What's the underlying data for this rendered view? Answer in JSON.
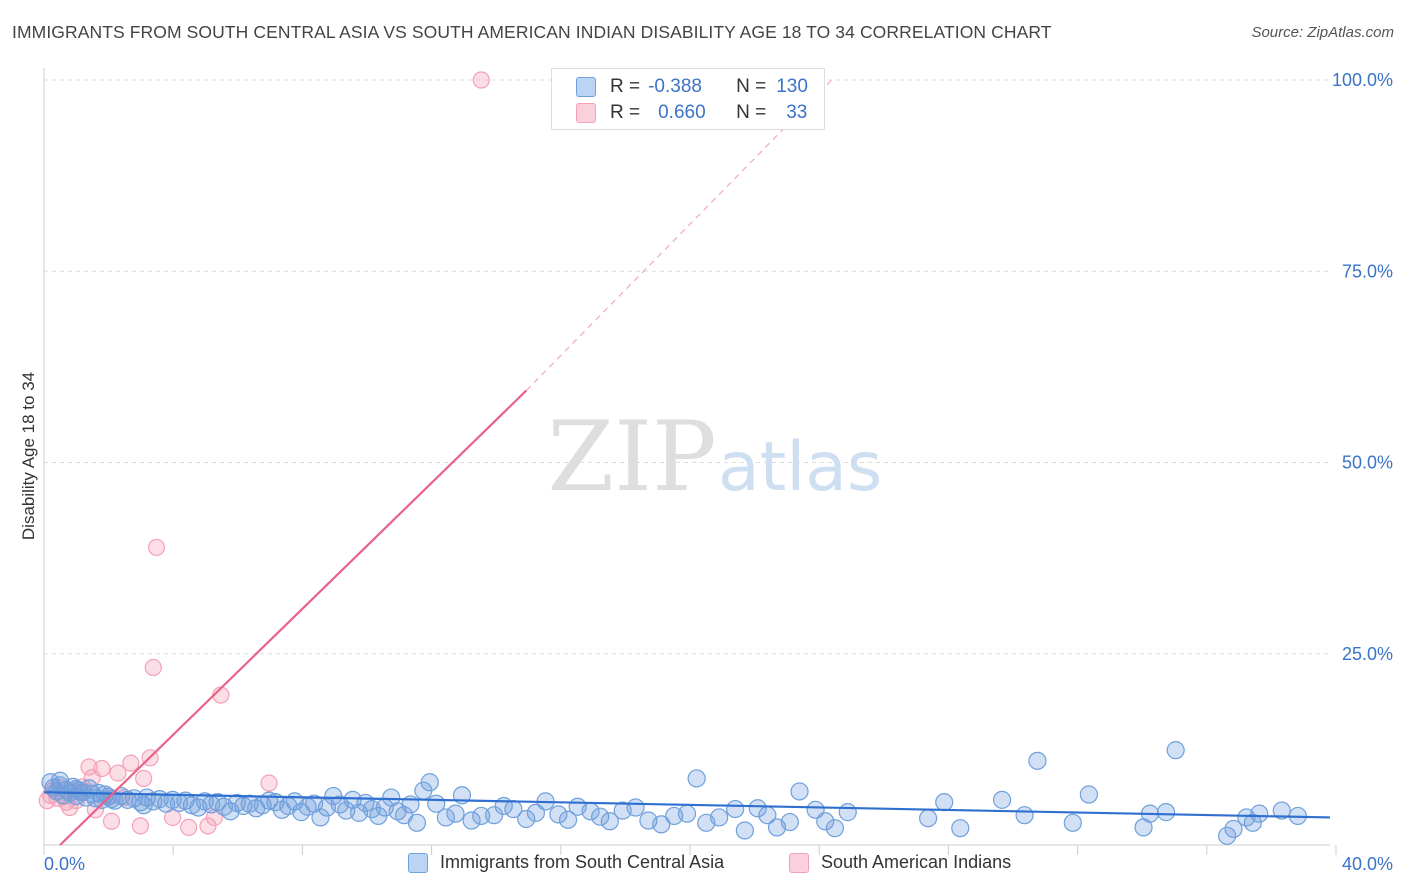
{
  "title": "IMMIGRANTS FROM SOUTH CENTRAL ASIA VS SOUTH AMERICAN INDIAN DISABILITY AGE 18 TO 34 CORRELATION CHART",
  "source": "Source: ZipAtlas.com",
  "watermark": {
    "zip": "ZIP",
    "atlas": "atlas"
  },
  "legend": {
    "series1": {
      "r_label": "R =",
      "r_value": "-0.388",
      "n_label": "N =",
      "n_value": "130"
    },
    "series2": {
      "r_label": "R =",
      "r_value": "0.660",
      "n_label": "N =",
      "n_value": "33"
    }
  },
  "chart_data": {
    "type": "scatter",
    "title": "IMMIGRANTS FROM SOUTH CENTRAL ASIA VS SOUTH AMERICAN INDIAN DISABILITY AGE 18 TO 34 CORRELATION CHART",
    "xlabel": "",
    "ylabel": "Disability Age 18 to 34",
    "xlim": [
      0,
      40
    ],
    "ylim": [
      0,
      100
    ],
    "x_tick_labels": [
      "0.0%",
      "40.0%"
    ],
    "y_tick_labels": [
      "25.0%",
      "50.0%",
      "75.0%",
      "100.0%"
    ],
    "y_ticks": [
      25,
      50,
      75,
      100
    ],
    "grid": true,
    "colors": {
      "blue": "#6fa0dc",
      "blue_line": "#2f6fd0",
      "pink": "#f4a0b8",
      "pink_line": "#e8628a",
      "tick": "#3a73c8"
    },
    "series": [
      {
        "name": "Immigrants from South Central Asia",
        "color": "#6fa0dc",
        "trend": {
          "x0": 0,
          "y0": 6.9,
          "x1": 40,
          "y1": 3.6
        },
        "points": [
          [
            0.2,
            8.2
          ],
          [
            0.3,
            7.5
          ],
          [
            0.4,
            7.0
          ],
          [
            0.5,
            7.8
          ],
          [
            0.6,
            6.5
          ],
          [
            0.7,
            7.2
          ],
          [
            0.8,
            6.8
          ],
          [
            0.9,
            7.6
          ],
          [
            1.0,
            6.4
          ],
          [
            1.1,
            7.1
          ],
          [
            1.2,
            6.9
          ],
          [
            1.3,
            6.2
          ],
          [
            1.4,
            7.4
          ],
          [
            1.5,
            6.7
          ],
          [
            1.6,
            6.1
          ],
          [
            1.7,
            6.8
          ],
          [
            1.8,
            5.9
          ],
          [
            1.9,
            6.6
          ],
          [
            2.0,
            6.3
          ],
          [
            2.2,
            5.8
          ],
          [
            2.4,
            6.4
          ],
          [
            2.6,
            5.9
          ],
          [
            2.8,
            6.1
          ],
          [
            3.0,
            5.6
          ],
          [
            3.2,
            6.2
          ],
          [
            3.4,
            5.7
          ],
          [
            3.6,
            6.0
          ],
          [
            3.8,
            5.4
          ],
          [
            4.0,
            5.9
          ],
          [
            4.2,
            5.5
          ],
          [
            4.4,
            5.8
          ],
          [
            4.6,
            5.2
          ],
          [
            4.8,
            4.9
          ],
          [
            5.0,
            5.7
          ],
          [
            5.2,
            5.3
          ],
          [
            5.4,
            5.6
          ],
          [
            5.6,
            5.0
          ],
          [
            5.8,
            4.4
          ],
          [
            6.0,
            5.5
          ],
          [
            6.2,
            5.1
          ],
          [
            6.4,
            5.4
          ],
          [
            6.6,
            4.8
          ],
          [
            6.8,
            5.2
          ],
          [
            7.0,
            5.8
          ],
          [
            7.2,
            5.6
          ],
          [
            7.4,
            4.6
          ],
          [
            7.6,
            5.1
          ],
          [
            7.8,
            5.7
          ],
          [
            8.0,
            4.3
          ],
          [
            8.2,
            5.0
          ],
          [
            8.4,
            5.4
          ],
          [
            8.6,
            3.6
          ],
          [
            8.8,
            4.9
          ],
          [
            9.0,
            6.4
          ],
          [
            9.2,
            5.3
          ],
          [
            9.4,
            4.5
          ],
          [
            9.6,
            5.9
          ],
          [
            9.8,
            4.2
          ],
          [
            10.0,
            5.5
          ],
          [
            10.2,
            4.7
          ],
          [
            10.4,
            3.8
          ],
          [
            10.6,
            4.9
          ],
          [
            10.8,
            6.2
          ],
          [
            11.0,
            4.4
          ],
          [
            11.2,
            3.9
          ],
          [
            11.4,
            5.3
          ],
          [
            11.6,
            2.9
          ],
          [
            11.8,
            7.1
          ],
          [
            12.0,
            8.2
          ],
          [
            12.2,
            5.4
          ],
          [
            12.5,
            3.6
          ],
          [
            12.8,
            4.1
          ],
          [
            13.0,
            6.5
          ],
          [
            13.3,
            3.2
          ],
          [
            13.6,
            3.8
          ],
          [
            14.0,
            3.9
          ],
          [
            14.3,
            5.1
          ],
          [
            14.6,
            4.7
          ],
          [
            15.0,
            3.4
          ],
          [
            15.3,
            4.2
          ],
          [
            15.6,
            5.7
          ],
          [
            16.0,
            4.0
          ],
          [
            16.3,
            3.3
          ],
          [
            16.6,
            5.0
          ],
          [
            17.0,
            4.4
          ],
          [
            17.3,
            3.7
          ],
          [
            17.6,
            3.1
          ],
          [
            18.0,
            4.5
          ],
          [
            18.4,
            4.9
          ],
          [
            18.8,
            3.2
          ],
          [
            19.2,
            2.7
          ],
          [
            19.6,
            3.8
          ],
          [
            20.0,
            4.1
          ],
          [
            20.3,
            8.7
          ],
          [
            20.6,
            2.9
          ],
          [
            21.0,
            3.6
          ],
          [
            21.5,
            4.7
          ],
          [
            21.8,
            1.9
          ],
          [
            22.2,
            4.8
          ],
          [
            22.5,
            3.9
          ],
          [
            22.8,
            2.3
          ],
          [
            23.2,
            3.0
          ],
          [
            23.5,
            7.0
          ],
          [
            24.0,
            4.6
          ],
          [
            24.3,
            3.1
          ],
          [
            24.6,
            2.2
          ],
          [
            25.0,
            4.3
          ],
          [
            27.5,
            3.5
          ],
          [
            28.0,
            5.6
          ],
          [
            28.5,
            2.2
          ],
          [
            29.8,
            5.9
          ],
          [
            30.5,
            3.9
          ],
          [
            30.9,
            11.0
          ],
          [
            32.0,
            2.9
          ],
          [
            32.5,
            6.6
          ],
          [
            34.2,
            2.3
          ],
          [
            34.4,
            4.1
          ],
          [
            34.9,
            4.3
          ],
          [
            35.2,
            12.4
          ],
          [
            36.8,
            1.2
          ],
          [
            37.0,
            2.1
          ],
          [
            37.4,
            3.6
          ],
          [
            37.6,
            2.9
          ],
          [
            37.8,
            4.1
          ],
          [
            38.5,
            4.5
          ],
          [
            39.0,
            3.8
          ],
          [
            0.5,
            8.4
          ],
          [
            1.0,
            7.3
          ],
          [
            2.1,
            6.0
          ],
          [
            3.1,
            5.2
          ]
        ]
      },
      {
        "name": "South American Indians",
        "color": "#f4a0b8",
        "trend": {
          "x0": 0.5,
          "y0": 0,
          "x1": 15,
          "y1": 59.4,
          "dash_x1": 24.5,
          "dash_y1": 100
        },
        "points": [
          [
            0.1,
            5.8
          ],
          [
            0.2,
            6.5
          ],
          [
            0.3,
            7.2
          ],
          [
            0.4,
            6.1
          ],
          [
            0.5,
            7.5
          ],
          [
            0.6,
            6.3
          ],
          [
            0.7,
            5.6
          ],
          [
            0.8,
            4.9
          ],
          [
            0.9,
            7.1
          ],
          [
            1.0,
            5.8
          ],
          [
            1.1,
            6.9
          ],
          [
            1.2,
            7.6
          ],
          [
            1.4,
            10.2
          ],
          [
            1.5,
            8.8
          ],
          [
            1.6,
            4.6
          ],
          [
            1.8,
            10.0
          ],
          [
            2.0,
            6.4
          ],
          [
            2.1,
            3.1
          ],
          [
            2.3,
            9.4
          ],
          [
            2.5,
            6.2
          ],
          [
            2.7,
            10.7
          ],
          [
            3.0,
            2.5
          ],
          [
            3.1,
            8.7
          ],
          [
            3.3,
            11.4
          ],
          [
            3.4,
            23.2
          ],
          [
            3.5,
            38.9
          ],
          [
            4.0,
            3.6
          ],
          [
            4.5,
            2.3
          ],
          [
            5.1,
            2.5
          ],
          [
            5.3,
            3.6
          ],
          [
            5.5,
            19.6
          ],
          [
            7.0,
            8.1
          ],
          [
            13.6,
            100.0
          ]
        ]
      }
    ]
  },
  "legend_bottom": [
    {
      "label": "Immigrants from South Central Asia"
    },
    {
      "label": "South American Indians"
    }
  ]
}
